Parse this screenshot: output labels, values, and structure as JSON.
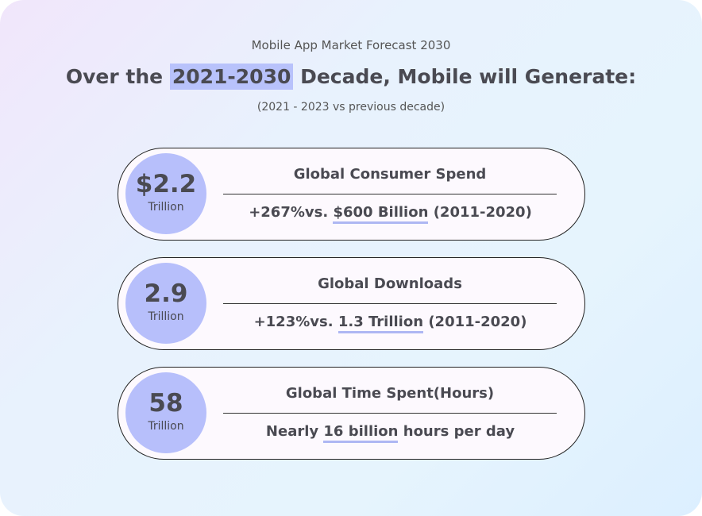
{
  "header": {
    "subtitle": "Mobile App Market Forecast 2030",
    "title": {
      "before": "Over the",
      "highlight": "2021-2030",
      "after": "Decade, Mobile will Generate:"
    },
    "note": "(2021 - 2023 vs previous decade)"
  },
  "cards": [
    {
      "value": "$2.2",
      "unit": "Trillion",
      "label": "Global Consumer Spend",
      "comparison": {
        "before": "+267%vs.",
        "underlined": "$600 Billion",
        "after": "(2011-2020)"
      }
    },
    {
      "value": "2.9",
      "unit": "Trillion",
      "label": "Global Downloads",
      "comparison": {
        "before": "+123%vs.",
        "underlined": "1.3 Trillion",
        "after": "(2011-2020)"
      }
    },
    {
      "value": "58",
      "unit": "Trillion",
      "label": "Global Time Spent(Hours)",
      "comparison": {
        "before": "Nearly",
        "underlined": "16 billion",
        "after": "hours per day"
      }
    }
  ]
}
